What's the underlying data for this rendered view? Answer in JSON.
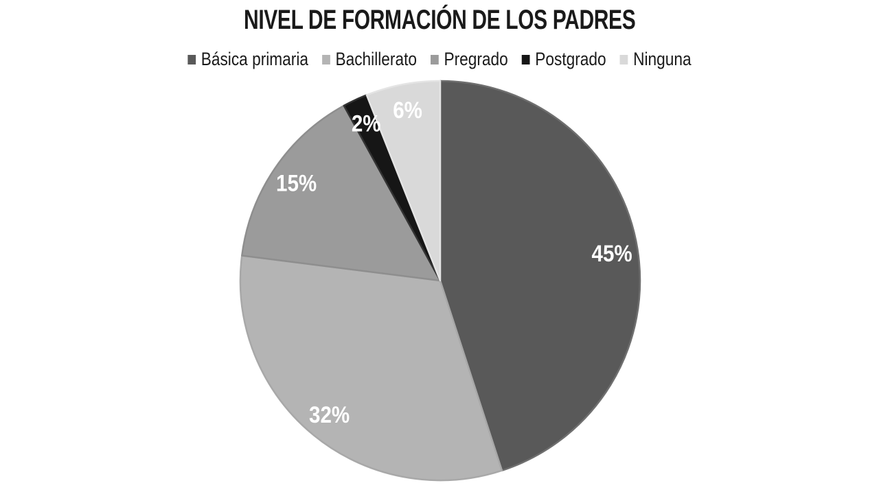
{
  "page": {
    "background": "#ffffff"
  },
  "style": {
    "title_color": "#1a1a1a",
    "legend_text_color": "#1a1a1a"
  },
  "chart_data": {
    "type": "pie",
    "title": "NIVEL DE FORMACIÓN DE LOS PADRES",
    "legend_position": "top",
    "direction": "clockwise",
    "start_angle_deg": 0,
    "unit": "%",
    "categories": [
      "Básica primaria",
      "Bachillerato",
      "Pregrado",
      "Postgrado",
      "Ninguna"
    ],
    "values": [
      45,
      32,
      15,
      2,
      6
    ],
    "data_label_color": "#ffffff",
    "slices": [
      {
        "label": "Básica primaria",
        "value": 45,
        "display": "45%",
        "color": "#595959",
        "border": "#6f6f6f"
      },
      {
        "label": "Bachillerato",
        "value": 32,
        "display": "32%",
        "color": "#b4b4b4",
        "border": "#a8a8a8"
      },
      {
        "label": "Pregrado",
        "value": 15,
        "display": "15%",
        "color": "#9b9b9b",
        "border": "#8e8e8e"
      },
      {
        "label": "Postgrado",
        "value": 2,
        "display": "2%",
        "color": "#161616",
        "border": "#333333"
      },
      {
        "label": "Ninguna",
        "value": 6,
        "display": "6%",
        "color": "#d9d9d9",
        "border": "#e4e4e4"
      }
    ]
  }
}
